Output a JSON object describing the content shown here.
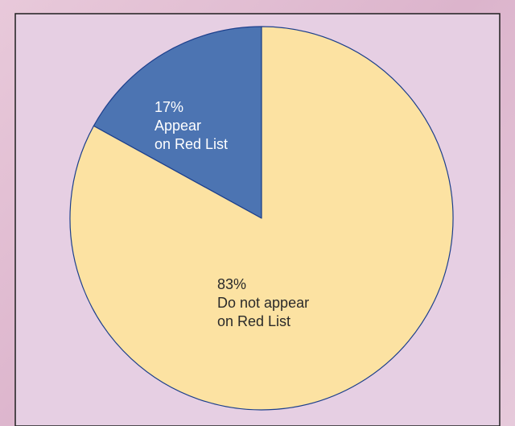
{
  "colors": {
    "panel_fill": "#e6cfe3",
    "panel_border": "#1f1f1f",
    "outline": "#1c3f8c"
  },
  "chart_data": {
    "type": "pie",
    "title": "",
    "slices": [
      {
        "value": 17,
        "percent_label": "17%",
        "label_lines": [
          "Appear",
          "on Red List"
        ],
        "color": "#4c74b2",
        "text_color": "#ffffff"
      },
      {
        "value": 83,
        "percent_label": "83%",
        "label_lines": [
          "Do not appear",
          "on Red List"
        ],
        "color": "#fce2a2",
        "text_color": "#2a2a2a"
      }
    ]
  }
}
